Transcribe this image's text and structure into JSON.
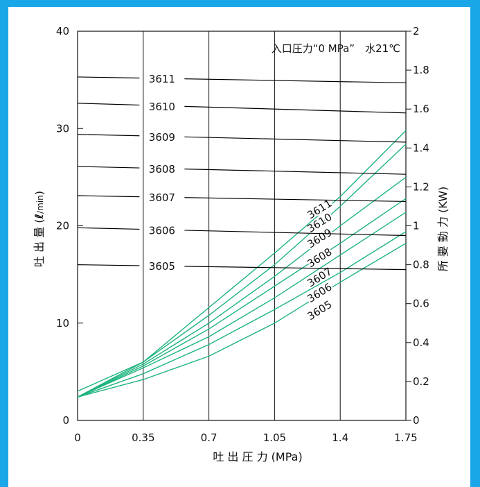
{
  "chart_data": {
    "type": "line",
    "title": "",
    "annotation": "入口圧力“0 MPa”　水21℃",
    "xlabel": "吐 出 圧 力 (MPa)",
    "ylabel_left_main": "吐 出 量 (",
    "ylabel_left_unit_l": "ℓ",
    "ylabel_left_unit_min": "/min",
    "ylabel_left_close": ")",
    "ylabel_right": "所 要 動 力 (KW)",
    "x_ticks": [
      "0",
      "0.35",
      "0.7",
      "1.05",
      "1.4",
      "1.75"
    ],
    "x_tick_values": [
      0,
      0.35,
      0.7,
      1.05,
      1.4,
      1.75
    ],
    "y_left_ticks": [
      "0",
      "10",
      "20",
      "30",
      "40"
    ],
    "y_left_tick_values": [
      0,
      10,
      20,
      30,
      40
    ],
    "y_right_ticks": [
      "0",
      "0.2",
      "0.4",
      "0.6",
      "0.8",
      "1",
      "1.2",
      "1.4",
      "1.6",
      "1.8",
      "2"
    ],
    "y_right_tick_values": [
      0,
      0.2,
      0.4,
      0.6,
      0.8,
      1.0,
      1.2,
      1.4,
      1.6,
      1.8,
      2.0
    ],
    "xlim": [
      0,
      1.75
    ],
    "ylim_left": [
      0,
      40
    ],
    "ylim_right": [
      0,
      2
    ],
    "grid": "vertical",
    "flow_series": [
      {
        "name": "3605",
        "color": "#000000",
        "x": [
          0,
          1.75
        ],
        "y": [
          16.0,
          15.5
        ]
      },
      {
        "name": "3606",
        "color": "#000000",
        "x": [
          0,
          1.75
        ],
        "y": [
          19.8,
          19.0
        ]
      },
      {
        "name": "3607",
        "color": "#000000",
        "x": [
          0,
          1.75
        ],
        "y": [
          23.1,
          22.5
        ]
      },
      {
        "name": "3608",
        "color": "#000000",
        "x": [
          0,
          1.75
        ],
        "y": [
          26.1,
          25.3
        ]
      },
      {
        "name": "3609",
        "color": "#000000",
        "x": [
          0,
          1.75
        ],
        "y": [
          29.4,
          28.6
        ]
      },
      {
        "name": "3610",
        "color": "#000000",
        "x": [
          0,
          1.75
        ],
        "y": [
          32.6,
          31.6
        ]
      },
      {
        "name": "3611",
        "color": "#000000",
        "x": [
          0,
          1.75
        ],
        "y": [
          35.3,
          34.7
        ]
      }
    ],
    "power_series": [
      {
        "name": "3605",
        "color": "#1db47d",
        "x": [
          0,
          0.35,
          0.7,
          1.05,
          1.4,
          1.75
        ],
        "y": [
          0.12,
          0.21,
          0.33,
          0.5,
          0.71,
          0.91
        ],
        "label_at": [
          1.3,
          0.55
        ]
      },
      {
        "name": "3606",
        "color": "#1db47d",
        "x": [
          0,
          0.35,
          0.7,
          1.05,
          1.4,
          1.75
        ],
        "y": [
          0.12,
          0.24,
          0.39,
          0.57,
          0.76,
          0.97
        ],
        "label_at": [
          1.3,
          0.64
        ]
      },
      {
        "name": "3607",
        "color": "#1db47d",
        "x": [
          0,
          0.35,
          0.7,
          1.05,
          1.4,
          1.75
        ],
        "y": [
          0.12,
          0.27,
          0.43,
          0.63,
          0.85,
          1.07
        ],
        "label_at": [
          1.3,
          0.72
        ]
      },
      {
        "name": "3608",
        "color": "#1db47d",
        "x": [
          0,
          0.35,
          0.7,
          1.05,
          1.4,
          1.75
        ],
        "y": [
          0.12,
          0.28,
          0.47,
          0.69,
          0.91,
          1.14
        ],
        "label_at": [
          1.3,
          0.82
        ]
      },
      {
        "name": "3609",
        "color": "#1db47d",
        "x": [
          0,
          0.35,
          0.7,
          1.05,
          1.4,
          1.75
        ],
        "y": [
          0.12,
          0.29,
          0.5,
          0.74,
          1.0,
          1.25
        ],
        "label_at": [
          1.3,
          0.92
        ]
      },
      {
        "name": "3610",
        "color": "#1db47d",
        "x": [
          0,
          0.35,
          0.7,
          1.05,
          1.4,
          1.75
        ],
        "y": [
          0.12,
          0.3,
          0.54,
          0.8,
          1.1,
          1.42
        ],
        "label_at": [
          1.3,
          1.0
        ]
      },
      {
        "name": "3611",
        "color": "#1db47d",
        "x": [
          0,
          0.35,
          0.7,
          1.05,
          1.4,
          1.75
        ],
        "y": [
          0.15,
          0.3,
          0.58,
          0.86,
          1.15,
          1.49
        ],
        "label_at": [
          1.3,
          1.07
        ]
      }
    ]
  }
}
